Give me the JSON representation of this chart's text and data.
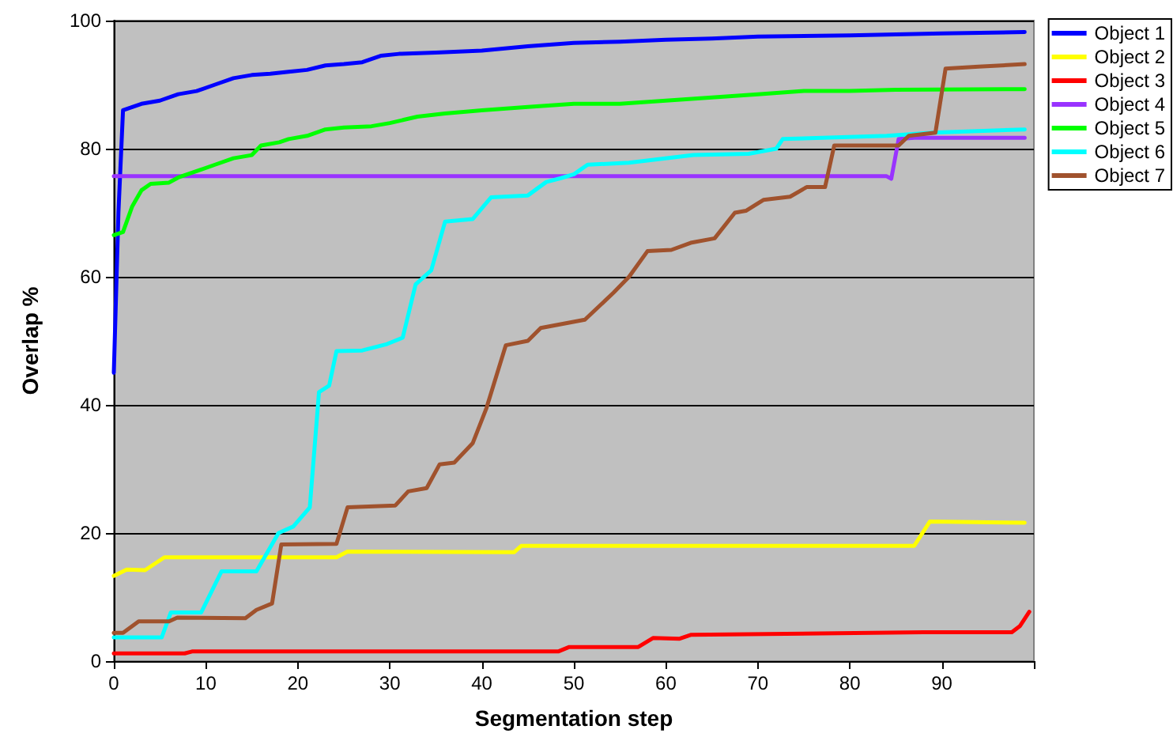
{
  "chart_data": {
    "type": "line",
    "xlabel": "Segmentation step",
    "ylabel": "Overlap %",
    "xlim": [
      0,
      100
    ],
    "xticks": [
      0,
      10,
      20,
      30,
      40,
      50,
      60,
      70,
      80,
      90,
      {
        "value": 100,
        "label": null
      }
    ],
    "ylim": [
      0,
      100
    ],
    "yticks": [
      0,
      20,
      40,
      60,
      80,
      100
    ],
    "grid": "y",
    "legend": "top right",
    "marker": "none",
    "line_style": "solid",
    "series": [
      {
        "name": "Object 1",
        "color": "#0000ff",
        "x": [
          0,
          0.5,
          1,
          3,
          5,
          7,
          9,
          11,
          13,
          15,
          17,
          19,
          21,
          23,
          25,
          27,
          29,
          31,
          35,
          40,
          45,
          50,
          55,
          60,
          65,
          70,
          80,
          90,
          99
        ],
        "values": [
          45,
          70,
          86,
          87,
          87.5,
          88.5,
          89,
          90,
          91,
          91.5,
          91.7,
          92,
          92.3,
          93,
          93.2,
          93.5,
          94.5,
          94.8,
          95,
          95.3,
          96,
          96.5,
          96.7,
          97,
          97.2,
          97.5,
          97.7,
          98,
          98.2
        ]
      },
      {
        "name": "Object 2",
        "color": "#ffff00",
        "x": [
          0,
          1.4,
          3.4,
          5.5,
          24.2,
          25.4,
          43.5,
          44.3,
          87,
          88.7,
          99
        ],
        "values": [
          13.3,
          14.3,
          14.2,
          16.2,
          16.2,
          17.1,
          17,
          18,
          18,
          21.8,
          21.6
        ]
      },
      {
        "name": "Object 3",
        "color": "#ff0000",
        "x": [
          0,
          7.7,
          8.5,
          48.3,
          49.5,
          57,
          58.6,
          61.5,
          62.7,
          88,
          97.6,
          98.5,
          99.5
        ],
        "values": [
          1.2,
          1.2,
          1.5,
          1.5,
          2.2,
          2.2,
          3.6,
          3.5,
          4.1,
          4.5,
          4.5,
          5.5,
          7.7
        ]
      },
      {
        "name": "Object 4",
        "color": "#9933ff",
        "x": [
          0,
          84,
          84.5,
          85.3,
          87,
          99
        ],
        "values": [
          75.7,
          75.7,
          75.3,
          81.5,
          81.7,
          81.7
        ]
      },
      {
        "name": "Object 5",
        "color": "#00ff00",
        "x": [
          0,
          1,
          2,
          3,
          4,
          6,
          7,
          9,
          11,
          13,
          15,
          16,
          18,
          19,
          21,
          23,
          25,
          28,
          30,
          33,
          36,
          40,
          45,
          50,
          55,
          60,
          65,
          70,
          75,
          80,
          85,
          99
        ],
        "values": [
          66.5,
          67,
          71,
          73.5,
          74.5,
          74.7,
          75.5,
          76.5,
          77.5,
          78.5,
          79,
          80.5,
          81,
          81.5,
          82,
          83,
          83.3,
          83.5,
          84,
          85,
          85.5,
          86,
          86.5,
          87,
          87,
          87.5,
          88,
          88.5,
          89,
          89,
          89.2,
          89.3
        ]
      },
      {
        "name": "Object 6",
        "color": "#00ffff",
        "x": [
          0,
          5.2,
          6.2,
          9.5,
          11.7,
          15.5,
          17.9,
          19.5,
          21.3,
          22.3,
          23.4,
          24.2,
          27,
          29.7,
          31.4,
          32.8,
          34.5,
          36,
          39,
          41,
          45,
          47,
          48.6,
          50,
          51.5,
          56,
          63,
          69,
          72,
          72.7,
          84,
          89,
          99
        ],
        "values": [
          3.7,
          3.7,
          7.6,
          7.6,
          14,
          14,
          20,
          21,
          24,
          42,
          43,
          48.4,
          48.5,
          49.5,
          50.5,
          58.8,
          61,
          68.6,
          69,
          72.4,
          72.7,
          74.8,
          75.4,
          76,
          77.5,
          77.8,
          79,
          79.2,
          80,
          81.5,
          82,
          82.5,
          83
        ]
      },
      {
        "name": "Object 7",
        "color": "#a0522d",
        "x": [
          0,
          1,
          2.7,
          6,
          6.9,
          14.3,
          15.5,
          17.2,
          18.2,
          24.2,
          25.4,
          30.6,
          32,
          34,
          35.4,
          37,
          39,
          40.5,
          42.6,
          45,
          46.4,
          51.2,
          54.3,
          56,
          58,
          60.6,
          62.7,
          65.3,
          67.5,
          68.7,
          70.6,
          73.5,
          75.3,
          77.3,
          78.3,
          85.3,
          86.4,
          89.3,
          90.4,
          94,
          99
        ],
        "values": [
          4.4,
          4.4,
          6.2,
          6.2,
          6.8,
          6.7,
          8,
          9,
          18.2,
          18.3,
          24,
          24.3,
          26.5,
          27,
          30.7,
          31,
          34,
          39.5,
          49.3,
          50,
          52,
          53.3,
          57.5,
          60,
          64,
          64.2,
          65.3,
          66,
          70,
          70.3,
          72,
          72.5,
          74,
          74,
          80.5,
          80.5,
          82,
          82.5,
          92.5,
          92.8,
          93.2
        ]
      }
    ]
  }
}
